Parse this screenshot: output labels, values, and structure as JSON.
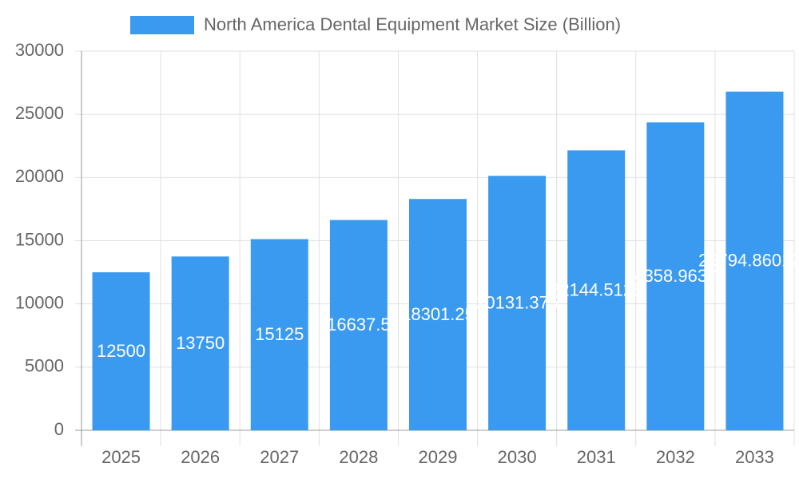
{
  "chart_data": {
    "type": "bar",
    "legend": "North America Dental Equipment Market Size (Billion)",
    "categories": [
      "2025",
      "2026",
      "2027",
      "2028",
      "2029",
      "2030",
      "2031",
      "2032",
      "2033"
    ],
    "values": [
      12500,
      13750,
      15125,
      16637.5,
      18301.25,
      20131.375,
      22144.5125,
      24358.96375,
      26794.860125
    ],
    "color": "#3a9af0",
    "ylim": [
      0,
      30000
    ],
    "yticks": [
      0,
      5000,
      10000,
      15000,
      20000,
      25000,
      30000
    ],
    "grid": true
  }
}
